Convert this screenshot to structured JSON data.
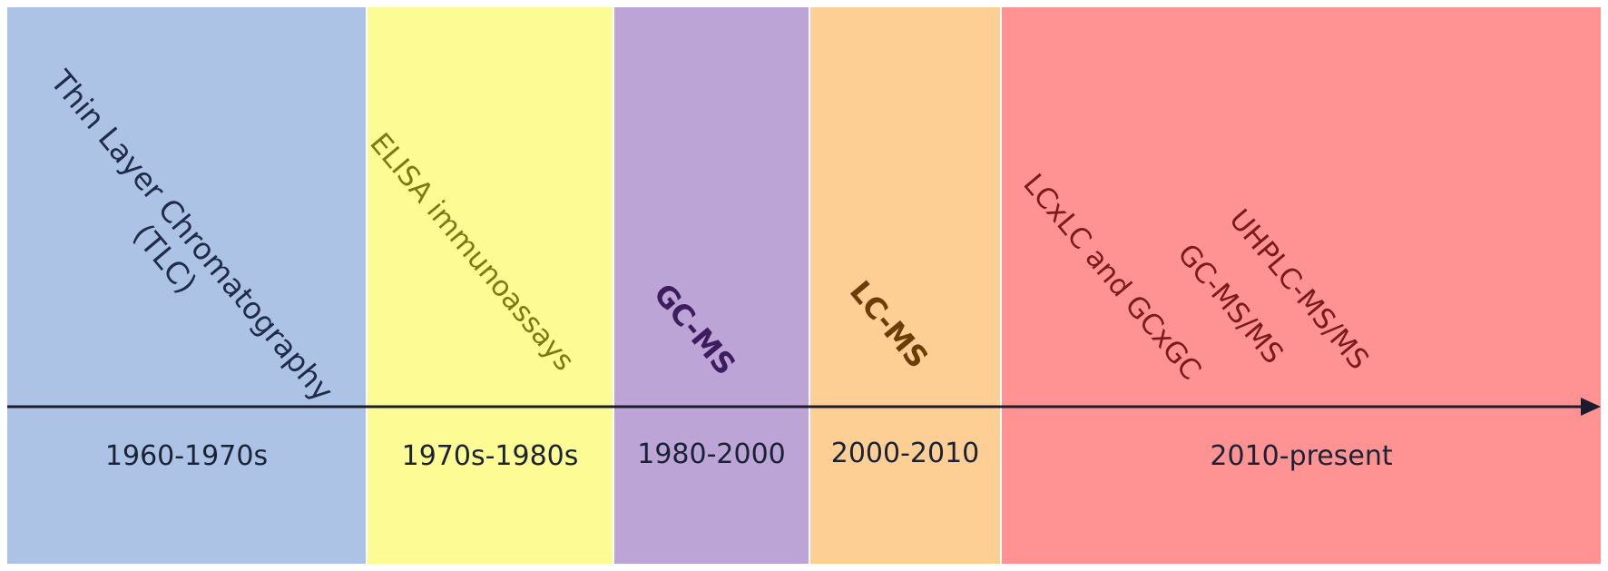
{
  "eras": [
    {
      "period": "1960-1970s",
      "techniques": [
        "Thin Layer Chromatography",
        "(TLC)"
      ],
      "color": "#adc3e6",
      "text_color": "#1f2b4a"
    },
    {
      "period": "1970s-1980s",
      "techniques": [
        "ELISA immunoassays"
      ],
      "color": "#fdfb94",
      "text_color": "#7d7a10"
    },
    {
      "period": "1980-2000",
      "techniques": [
        "GC-MS"
      ],
      "color": "#bda4d6",
      "text_color": "#3e1d5e"
    },
    {
      "period": "2000-2010",
      "techniques": [
        "LC-MS"
      ],
      "color": "#fdcf95",
      "text_color": "#6b3d09"
    },
    {
      "period": "2010-present",
      "techniques": [
        "LCxLC and GCxGC",
        "GC-MS/MS",
        "UHPLC-MS/MS"
      ],
      "color": "#ff9393",
      "text_color": "#7a1a1a"
    }
  ],
  "axis_color": "#1c1c2e"
}
